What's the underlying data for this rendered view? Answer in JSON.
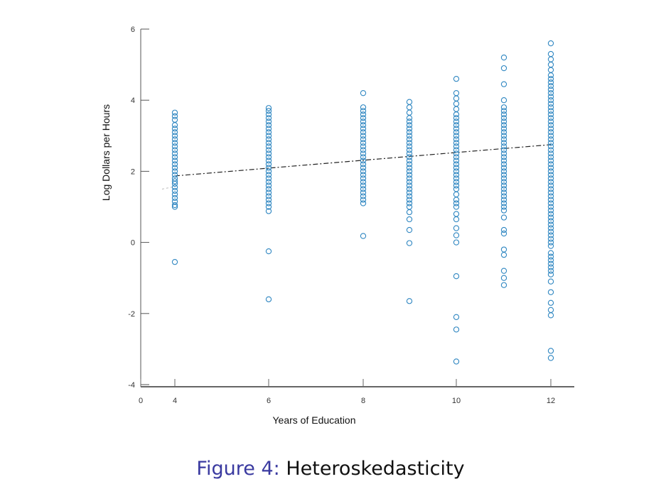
{
  "chart_data": {
    "type": "scatter",
    "xlabel": "Years of Education",
    "ylabel": "Log Dollars per Hours",
    "x_ticks": [
      "0",
      "4",
      "6",
      "8",
      "10",
      "12"
    ],
    "y_ticks": [
      "-4",
      "-2",
      "0",
      "2",
      "4",
      "6"
    ],
    "ylim": [
      -4,
      6
    ],
    "categories": [
      "0",
      "4",
      "6",
      "8",
      "9",
      "10",
      "11",
      "12"
    ],
    "x_tick_categories": [
      "0",
      "4",
      "6",
      "8",
      "10",
      "12"
    ],
    "grid": false,
    "legend": "none",
    "point_color": "#2e86c1",
    "fit_color": "#222222",
    "fit_line": {
      "start": [
        "4",
        1.87
      ],
      "end": [
        "12",
        2.75
      ]
    },
    "fit_tail": {
      "start": [
        "0",
        1.5
      ],
      "end": [
        "4",
        1.57
      ]
    },
    "series": [
      {
        "x": "4",
        "y": [
          -0.55,
          1.0,
          1.05,
          1.15,
          1.25,
          1.35,
          1.45,
          1.55,
          1.65,
          1.72,
          1.8,
          1.9,
          2.0,
          2.1,
          2.2,
          2.3,
          2.4,
          2.5,
          2.6,
          2.7,
          2.8,
          2.9,
          3.0,
          3.1,
          3.2,
          3.3,
          3.45,
          3.55,
          3.65
        ]
      },
      {
        "x": "6",
        "y": [
          -1.6,
          -0.25,
          0.88,
          1.0,
          1.1,
          1.2,
          1.3,
          1.4,
          1.5,
          1.6,
          1.7,
          1.8,
          1.9,
          2.0,
          2.1,
          2.2,
          2.3,
          2.4,
          2.5,
          2.6,
          2.7,
          2.8,
          2.9,
          3.0,
          3.1,
          3.2,
          3.3,
          3.4,
          3.5,
          3.6,
          3.7,
          3.78
        ]
      },
      {
        "x": "8",
        "y": [
          0.18,
          1.1,
          1.2,
          1.3,
          1.4,
          1.5,
          1.6,
          1.7,
          1.8,
          1.9,
          2.0,
          2.1,
          2.2,
          2.3,
          2.4,
          2.5,
          2.6,
          2.7,
          2.8,
          2.9,
          3.0,
          3.1,
          3.2,
          3.3,
          3.4,
          3.5,
          3.6,
          3.7,
          3.8,
          4.2
        ]
      },
      {
        "x": "9",
        "y": [
          -1.65,
          -0.02,
          0.35,
          0.65,
          0.85,
          1.0,
          1.1,
          1.2,
          1.3,
          1.4,
          1.5,
          1.6,
          1.7,
          1.8,
          1.9,
          2.0,
          2.1,
          2.2,
          2.3,
          2.4,
          2.5,
          2.6,
          2.7,
          2.8,
          2.9,
          3.0,
          3.1,
          3.2,
          3.3,
          3.4,
          3.5,
          3.65,
          3.8,
          3.95
        ]
      },
      {
        "x": "10",
        "y": [
          -3.35,
          -2.45,
          -2.1,
          -0.95,
          0.0,
          0.2,
          0.4,
          0.65,
          0.8,
          1.0,
          1.1,
          1.2,
          1.35,
          1.5,
          1.6,
          1.7,
          1.8,
          1.9,
          2.0,
          2.1,
          2.2,
          2.3,
          2.4,
          2.5,
          2.6,
          2.7,
          2.8,
          2.9,
          3.0,
          3.1,
          3.2,
          3.3,
          3.4,
          3.5,
          3.6,
          3.75,
          3.9,
          4.05,
          4.2,
          4.6
        ]
      },
      {
        "x": "11",
        "y": [
          -1.2,
          -1.0,
          -0.8,
          -0.35,
          -0.2,
          0.25,
          0.35,
          0.7,
          0.9,
          1.0,
          1.1,
          1.2,
          1.3,
          1.4,
          1.5,
          1.6,
          1.7,
          1.8,
          1.9,
          2.0,
          2.1,
          2.2,
          2.3,
          2.4,
          2.5,
          2.6,
          2.7,
          2.8,
          2.9,
          3.0,
          3.1,
          3.2,
          3.3,
          3.4,
          3.5,
          3.6,
          3.7,
          3.8,
          4.0,
          4.45,
          4.9,
          5.2
        ]
      },
      {
        "x": "12",
        "y": [
          -3.25,
          -3.05,
          -2.05,
          -1.9,
          -1.7,
          -1.4,
          -1.1,
          -0.9,
          -0.8,
          -0.7,
          -0.6,
          -0.5,
          -0.4,
          -0.3,
          -0.1,
          0.0,
          0.1,
          0.2,
          0.3,
          0.4,
          0.5,
          0.6,
          0.7,
          0.8,
          0.9,
          1.0,
          1.1,
          1.2,
          1.3,
          1.4,
          1.5,
          1.6,
          1.7,
          1.8,
          1.9,
          2.0,
          2.1,
          2.2,
          2.3,
          2.4,
          2.5,
          2.6,
          2.7,
          2.8,
          2.9,
          3.0,
          3.1,
          3.2,
          3.3,
          3.4,
          3.5,
          3.6,
          3.7,
          3.8,
          3.9,
          4.0,
          4.1,
          4.2,
          4.3,
          4.4,
          4.5,
          4.6,
          4.7,
          4.85,
          5.0,
          5.15,
          5.3,
          5.6
        ]
      }
    ]
  },
  "caption": {
    "label": "Figure 4:",
    "text": "Heteroskedasticity"
  }
}
